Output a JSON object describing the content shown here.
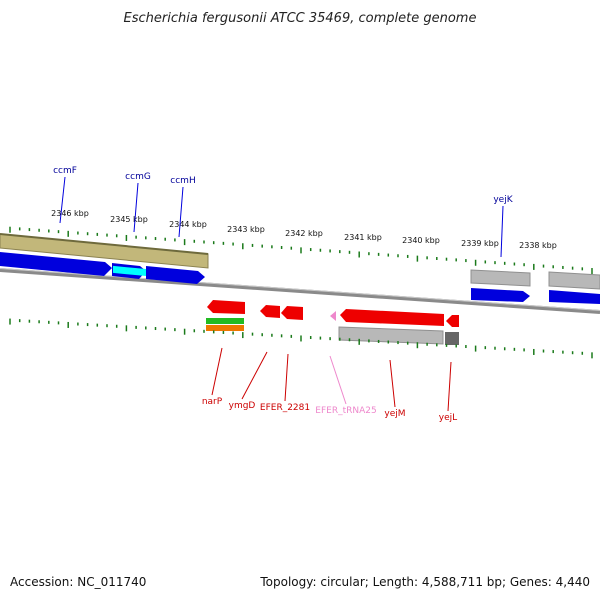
{
  "title": "Escherichia fergusonii ATCC 35469, complete genome",
  "footer": {
    "accession": "Accession: NC_011740",
    "summary": "Topology: circular; Length: 4,588,711 bp; Genes: 4,440"
  },
  "colors": {
    "tick": "#1a7a1a",
    "backbone": "#8a8a8a",
    "gene_top_label": "#000099",
    "gene_bottom_label": "#cc0000",
    "trna_label": "#ee88cc",
    "cds_forward": "#0000dd",
    "cds_reverse": "#ee0000",
    "olive": "#c2b77a",
    "cyan": "#00ffff",
    "gray_feature": "#b8b8b8"
  },
  "scale": {
    "unit": "kbp",
    "ticks": [
      "2346 kbp",
      "2345 kbp",
      "2344 kbp",
      "2343 kbp",
      "2342 kbp",
      "2341 kbp",
      "2340 kbp",
      "2339 kbp",
      "2338 kbp"
    ]
  },
  "genes_top": [
    "ccmF",
    "ccmG",
    "ccmH",
    "yejK"
  ],
  "genes_bottom": [
    "narP",
    "ymgD",
    "EFER_2281",
    "EFER_tRNA25",
    "yejM",
    "yejL"
  ]
}
